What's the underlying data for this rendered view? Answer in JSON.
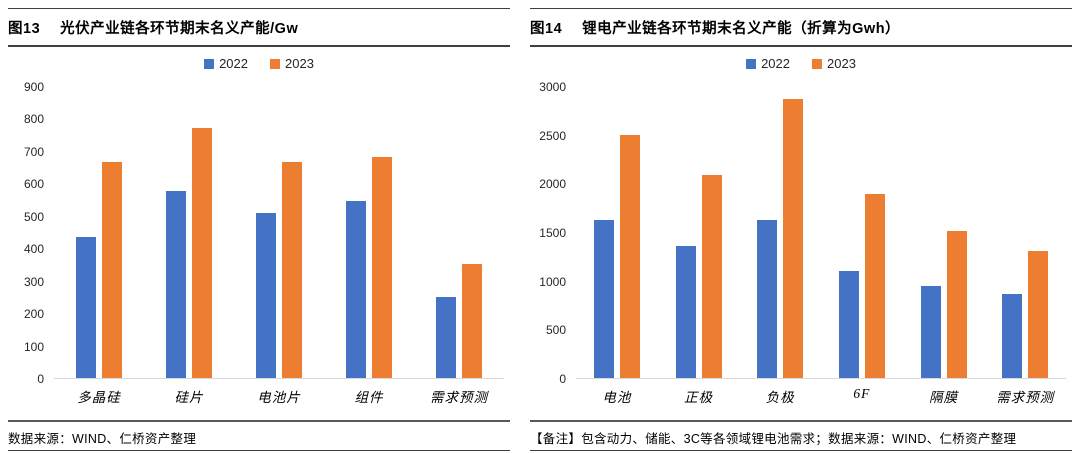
{
  "colors": {
    "series_2022": "#4472C4",
    "series_2023": "#ED7D31",
    "axis_line": "#D9D9D9",
    "rule_dark": "#3F3F3F",
    "rule_gray": "#595959"
  },
  "panels": [
    {
      "title_tag": "图13",
      "title": "光伏产业链各环节期末名义产能/Gw",
      "footnote": "数据来源：WIND、仁桥资产整理"
    },
    {
      "title_tag": "图14",
      "title": "锂电产业链各环节期末名义产能（折算为Gwh）",
      "footnote": "【备注】包含动力、储能、3C等各领域锂电池需求；数据来源：WIND、仁桥资产整理"
    }
  ],
  "chart_data": [
    {
      "type": "bar",
      "title": "图13 光伏产业链各环节期末名义产能/Gw",
      "categories": [
        "多晶硅",
        "硅片",
        "电池片",
        "组件",
        "需求预测"
      ],
      "series": [
        {
          "name": "2022",
          "color": "#4472C4",
          "values": [
            435,
            575,
            510,
            545,
            250
          ]
        },
        {
          "name": "2023",
          "color": "#ED7D31",
          "values": [
            665,
            770,
            665,
            680,
            350
          ]
        }
      ],
      "xlabel": "",
      "ylabel": "",
      "ylim": [
        0,
        900
      ],
      "yticks": [
        0,
        100,
        200,
        300,
        400,
        500,
        600,
        700,
        800,
        900
      ],
      "grid": false,
      "legend_position": "top-center",
      "legend": [
        "2022",
        "2023"
      ]
    },
    {
      "type": "bar",
      "title": "图14 锂电产业链各环节期末名义产能（折算为Gwh）",
      "categories": [
        "电池",
        "正极",
        "负极",
        "6F",
        "隔膜",
        "需求预测"
      ],
      "series": [
        {
          "name": "2022",
          "color": "#4472C4",
          "values": [
            1620,
            1360,
            1620,
            1100,
            950,
            860
          ]
        },
        {
          "name": "2023",
          "color": "#ED7D31",
          "values": [
            2500,
            2090,
            2870,
            1890,
            1510,
            1300
          ]
        }
      ],
      "xlabel": "",
      "ylabel": "",
      "ylim": [
        0,
        3000
      ],
      "yticks": [
        0,
        500,
        1000,
        1500,
        2000,
        2500,
        3000
      ],
      "grid": false,
      "legend_position": "top-center",
      "legend": [
        "2022",
        "2023"
      ]
    }
  ]
}
